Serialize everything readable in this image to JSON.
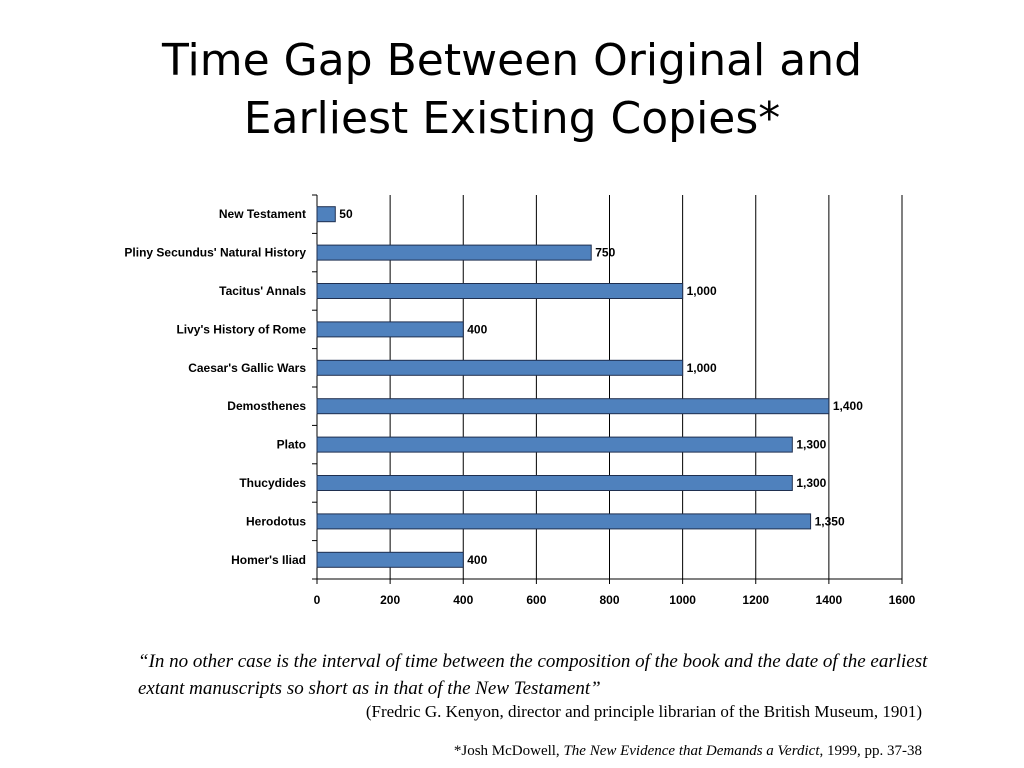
{
  "title": {
    "line1": "Time Gap Between Original and",
    "line2": "Earliest Existing Copies*"
  },
  "chart_data": {
    "type": "bar",
    "orientation": "horizontal",
    "categories": [
      "New Testament",
      "Pliny Secundus' Natural History",
      "Tacitus' Annals",
      "Livy's History of Rome",
      "Caesar's Gallic Wars",
      "Demosthenes",
      "Plato",
      "Thucydides",
      "Herodotus",
      "Homer's Iliad"
    ],
    "values": [
      50,
      750,
      1000,
      400,
      1000,
      1400,
      1300,
      1300,
      1350,
      400
    ],
    "data_labels": [
      "50",
      "750",
      "1,000",
      "400",
      "1,000",
      "1,400",
      "1,300",
      "1,300",
      "1,350",
      "400"
    ],
    "xlim": [
      0,
      1600
    ],
    "x_ticks": [
      "0",
      "200",
      "400",
      "600",
      "800",
      "1000",
      "1200",
      "1400",
      "1600"
    ],
    "grid": "vertical major gridlines",
    "bar_color": "#4f81bd",
    "bar_edge_color": "#1f2f4f"
  },
  "quote": {
    "text": "“In no other case is the interval of time between the composition of the book and the date of the earliest extant manuscripts so short as in that of the New Testament”"
  },
  "attribution": "(Fredric G. Kenyon, director and principle librarian of the British Museum, 1901)",
  "footnote": {
    "prefix": "*Josh McDowell, ",
    "book": "The New Evidence that Demands a Verdict",
    "suffix": ", 1999, pp. 37-38"
  }
}
